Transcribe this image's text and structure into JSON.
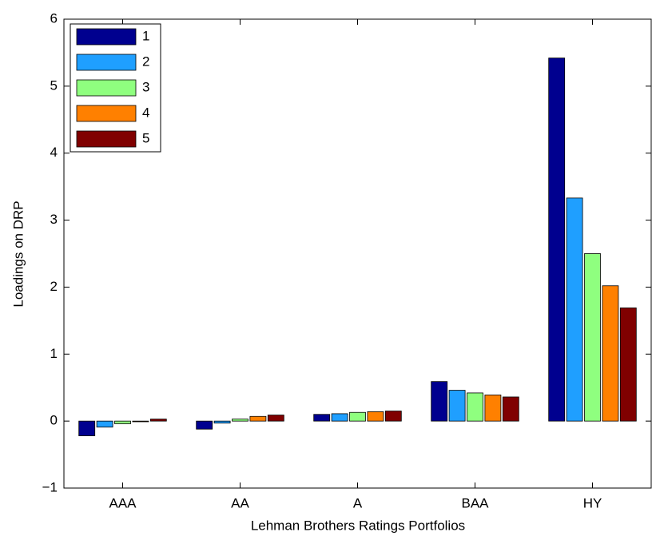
{
  "chart_data": {
    "type": "bar",
    "xlabel": "Lehman Brothers Ratings Portfolios",
    "ylabel": "Loadings on DRP",
    "categories": [
      "AAA",
      "AA",
      "A",
      "BAA",
      "HY"
    ],
    "series": [
      {
        "name": "1",
        "color": "#00008f",
        "values": [
          -0.22,
          -0.12,
          0.1,
          0.59,
          5.42
        ]
      },
      {
        "name": "2",
        "color": "#1f9fff",
        "values": [
          -0.09,
          -0.03,
          0.11,
          0.46,
          3.33
        ]
      },
      {
        "name": "3",
        "color": "#8fff7f",
        "values": [
          -0.04,
          0.03,
          0.13,
          0.42,
          2.5
        ]
      },
      {
        "name": "4",
        "color": "#ff8000",
        "values": [
          -0.01,
          0.07,
          0.14,
          0.39,
          2.02
        ]
      },
      {
        "name": "5",
        "color": "#800000",
        "values": [
          0.03,
          0.09,
          0.15,
          0.36,
          1.69
        ]
      }
    ],
    "ylim": [
      -1,
      6
    ],
    "yticks": [
      {
        "value": -1,
        "label": "−1"
      },
      0,
      1,
      2,
      3,
      4,
      5,
      6
    ],
    "grid": false,
    "legend": "upper left"
  }
}
